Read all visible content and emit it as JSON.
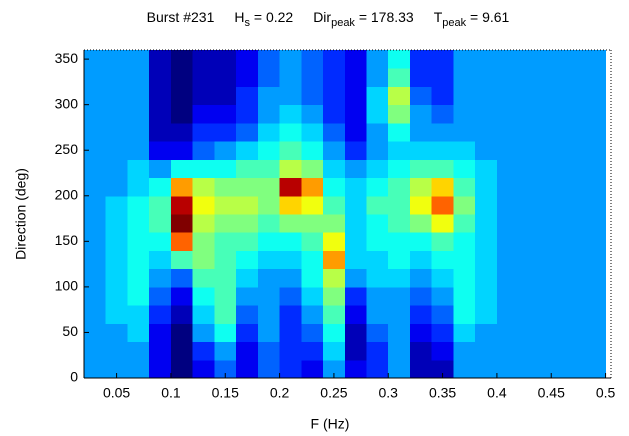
{
  "chart_data": {
    "type": "heatmap",
    "title_parts": [
      [
        "Burst #231"
      ],
      [
        "H",
        "s",
        " = 0.22"
      ],
      [
        "Dir",
        "peak",
        " = 178.33"
      ],
      [
        "T",
        "peak",
        " = 9.61"
      ]
    ],
    "x_label": "F (Hz)",
    "y_label": "Direction (deg)",
    "colormap": "jet",
    "xlim": [
      0.02,
      0.505
    ],
    "ylim": [
      0,
      360
    ],
    "xticks": [
      0.05,
      0.1,
      0.15,
      0.2,
      0.25,
      0.3,
      0.35,
      0.4,
      0.45,
      0.5
    ],
    "yticks": [
      0,
      50,
      100,
      150,
      200,
      250,
      300,
      350
    ],
    "xbins": [
      0.02,
      0.04,
      0.06,
      0.08,
      0.1,
      0.12,
      0.14,
      0.16,
      0.18,
      0.2,
      0.22,
      0.24,
      0.26,
      0.28,
      0.3,
      0.32,
      0.34,
      0.36,
      0.38,
      0.4,
      0.42,
      0.44,
      0.46,
      0.48,
      0.5
    ],
    "ybins": [
      0,
      20,
      40,
      60,
      80,
      100,
      120,
      140,
      160,
      180,
      200,
      220,
      240,
      260,
      280,
      300,
      320,
      340,
      360
    ],
    "z": [
      [
        0.3,
        0.3,
        0.3,
        0.15,
        0.05,
        0.15,
        0.25,
        0.15,
        0.25,
        0.2,
        0.15,
        0.3,
        0.15,
        0.2,
        0.3,
        0.1,
        0.1,
        0.3,
        0.3,
        0.3,
        0.3,
        0.3,
        0.3,
        0.3
      ],
      [
        0.3,
        0.3,
        0.3,
        0.15,
        0.05,
        0.2,
        0.3,
        0.15,
        0.25,
        0.2,
        0.2,
        0.35,
        0.1,
        0.2,
        0.3,
        0.1,
        0.15,
        0.3,
        0.3,
        0.3,
        0.3,
        0.3,
        0.3,
        0.3
      ],
      [
        0.3,
        0.3,
        0.35,
        0.15,
        0.05,
        0.3,
        0.4,
        0.2,
        0.3,
        0.2,
        0.25,
        0.4,
        0.1,
        0.25,
        0.3,
        0.15,
        0.2,
        0.35,
        0.3,
        0.3,
        0.3,
        0.3,
        0.3,
        0.3
      ],
      [
        0.3,
        0.35,
        0.35,
        0.2,
        0.1,
        0.35,
        0.45,
        0.25,
        0.3,
        0.2,
        0.3,
        0.45,
        0.15,
        0.3,
        0.3,
        0.2,
        0.25,
        0.4,
        0.35,
        0.3,
        0.3,
        0.3,
        0.3,
        0.3
      ],
      [
        0.3,
        0.35,
        0.4,
        0.25,
        0.15,
        0.4,
        0.45,
        0.3,
        0.3,
        0.25,
        0.35,
        0.5,
        0.2,
        0.3,
        0.3,
        0.25,
        0.3,
        0.4,
        0.35,
        0.3,
        0.3,
        0.3,
        0.3,
        0.3
      ],
      [
        0.3,
        0.35,
        0.4,
        0.3,
        0.25,
        0.45,
        0.45,
        0.35,
        0.3,
        0.3,
        0.4,
        0.55,
        0.3,
        0.35,
        0.35,
        0.3,
        0.35,
        0.4,
        0.35,
        0.3,
        0.3,
        0.3,
        0.3,
        0.3
      ],
      [
        0.3,
        0.35,
        0.4,
        0.35,
        0.45,
        0.5,
        0.45,
        0.4,
        0.35,
        0.35,
        0.4,
        0.7,
        0.35,
        0.35,
        0.4,
        0.35,
        0.4,
        0.4,
        0.35,
        0.3,
        0.3,
        0.3,
        0.3,
        0.3
      ],
      [
        0.3,
        0.35,
        0.4,
        0.4,
        0.75,
        0.5,
        0.45,
        0.45,
        0.4,
        0.4,
        0.45,
        0.6,
        0.35,
        0.4,
        0.4,
        0.4,
        0.45,
        0.4,
        0.35,
        0.3,
        0.3,
        0.3,
        0.3,
        0.3
      ],
      [
        0.3,
        0.35,
        0.4,
        0.45,
        0.95,
        0.55,
        0.5,
        0.5,
        0.45,
        0.5,
        0.5,
        0.5,
        0.35,
        0.4,
        0.45,
        0.5,
        0.6,
        0.45,
        0.35,
        0.3,
        0.3,
        0.3,
        0.3,
        0.3
      ],
      [
        0.3,
        0.35,
        0.4,
        0.45,
        0.9,
        0.6,
        0.55,
        0.55,
        0.5,
        0.65,
        0.6,
        0.45,
        0.35,
        0.45,
        0.45,
        0.6,
        0.75,
        0.5,
        0.35,
        0.3,
        0.3,
        0.3,
        0.3,
        0.3
      ],
      [
        0.3,
        0.3,
        0.35,
        0.4,
        0.7,
        0.55,
        0.5,
        0.5,
        0.5,
        0.9,
        0.7,
        0.4,
        0.35,
        0.4,
        0.45,
        0.55,
        0.65,
        0.45,
        0.35,
        0.3,
        0.3,
        0.3,
        0.3,
        0.3
      ],
      [
        0.3,
        0.3,
        0.35,
        0.3,
        0.4,
        0.4,
        0.4,
        0.45,
        0.45,
        0.55,
        0.5,
        0.35,
        0.3,
        0.35,
        0.4,
        0.45,
        0.45,
        0.4,
        0.35,
        0.3,
        0.3,
        0.3,
        0.3,
        0.3
      ],
      [
        0.3,
        0.3,
        0.3,
        0.15,
        0.15,
        0.25,
        0.3,
        0.35,
        0.4,
        0.45,
        0.4,
        0.3,
        0.2,
        0.3,
        0.35,
        0.35,
        0.35,
        0.35,
        0.3,
        0.3,
        0.3,
        0.3,
        0.3,
        0.3
      ],
      [
        0.3,
        0.3,
        0.3,
        0.1,
        0.1,
        0.2,
        0.2,
        0.25,
        0.35,
        0.4,
        0.35,
        0.25,
        0.15,
        0.3,
        0.4,
        0.3,
        0.3,
        0.3,
        0.3,
        0.3,
        0.3,
        0.3,
        0.3,
        0.3
      ],
      [
        0.3,
        0.3,
        0.3,
        0.1,
        0.05,
        0.15,
        0.15,
        0.2,
        0.3,
        0.35,
        0.3,
        0.2,
        0.15,
        0.35,
        0.5,
        0.3,
        0.25,
        0.3,
        0.3,
        0.3,
        0.3,
        0.3,
        0.3,
        0.3
      ],
      [
        0.3,
        0.3,
        0.3,
        0.1,
        0.05,
        0.1,
        0.1,
        0.2,
        0.3,
        0.3,
        0.25,
        0.2,
        0.15,
        0.35,
        0.55,
        0.25,
        0.2,
        0.3,
        0.3,
        0.3,
        0.3,
        0.3,
        0.3,
        0.3
      ],
      [
        0.3,
        0.3,
        0.3,
        0.1,
        0.05,
        0.1,
        0.1,
        0.15,
        0.25,
        0.3,
        0.25,
        0.2,
        0.15,
        0.3,
        0.45,
        0.2,
        0.2,
        0.3,
        0.3,
        0.3,
        0.3,
        0.3,
        0.3,
        0.3
      ],
      [
        0.3,
        0.3,
        0.3,
        0.1,
        0.05,
        0.1,
        0.1,
        0.15,
        0.25,
        0.3,
        0.25,
        0.2,
        0.15,
        0.3,
        0.4,
        0.2,
        0.2,
        0.3,
        0.3,
        0.3,
        0.3,
        0.3,
        0.3,
        0.3
      ]
    ]
  }
}
